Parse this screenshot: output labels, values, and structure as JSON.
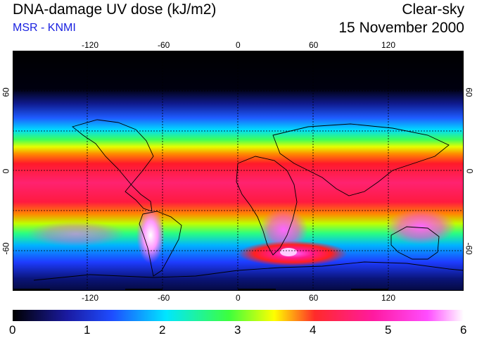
{
  "header": {
    "title": "DNA-damage UV dose (kJ/m2)",
    "subtitle": "MSR - KNMI",
    "condition": "Clear-sky",
    "date": "15 November 2000"
  },
  "map": {
    "lon_labels": [
      "-120",
      "-60",
      "0",
      "60",
      "120"
    ],
    "lat_labels": [
      "60",
      "0",
      "-60"
    ],
    "lat_labels_right": [
      "60",
      "0",
      "-60"
    ]
  },
  "colorbar": {
    "labels": [
      "0",
      "1",
      "2",
      "3",
      "4",
      "5",
      "6"
    ],
    "stops": [
      "#000000",
      "#1a1aa0",
      "#1e4cff",
      "#00e6ff",
      "#3dff3d",
      "#ffff00",
      "#ff2a2a",
      "#ff1aa0",
      "#ff4dff",
      "#ffffff"
    ]
  }
}
